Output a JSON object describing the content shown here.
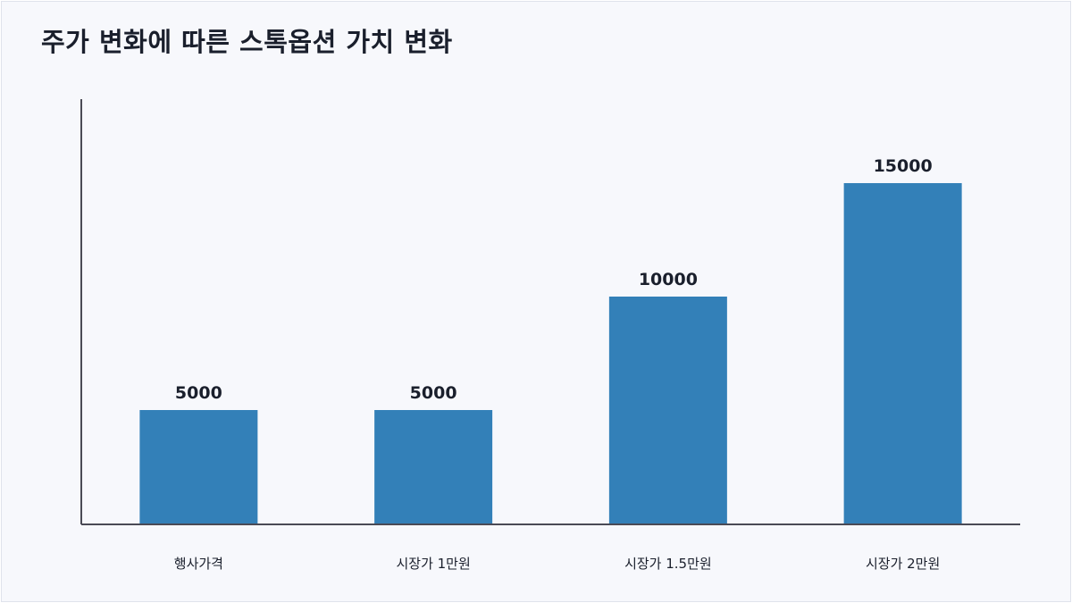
{
  "chart_data": {
    "type": "bar",
    "title": "주가 변화에 따른 스톡옵션 가치 변화",
    "xlabel": "",
    "ylabel": "",
    "categories": [
      "행사가격",
      "시장가 1만원",
      "시장가 1.5만원",
      "시장가 2만원"
    ],
    "values": [
      5000,
      5000,
      10000,
      15000
    ],
    "data_labels": [
      "5000",
      "5000",
      "10000",
      "15000"
    ],
    "ylim": [
      0,
      18700
    ],
    "grid": false,
    "legend": "none",
    "colors": {
      "bar": "#3380b8",
      "axis": "#4a4a55",
      "text": "#1a1f2c",
      "background": "#f7f8fc"
    }
  }
}
